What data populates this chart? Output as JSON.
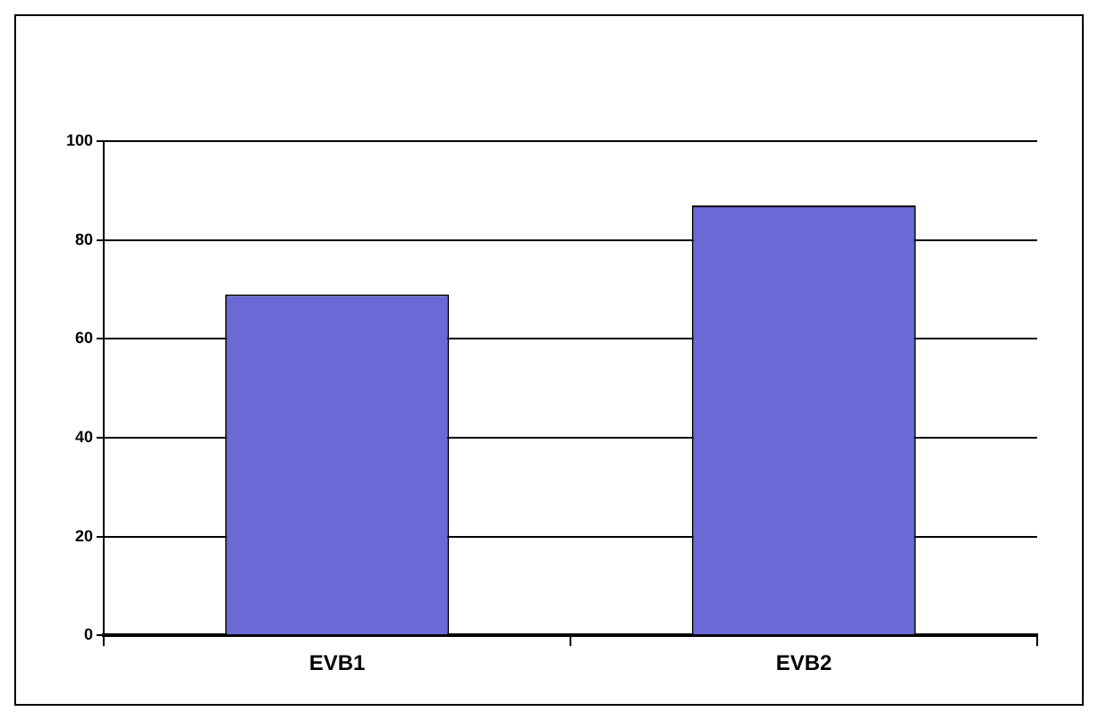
{
  "chart_data": {
    "type": "bar",
    "categories": [
      "EVB1",
      "EVB2"
    ],
    "values": [
      69,
      87
    ],
    "color": "#6a6ad6",
    "ylim": [
      0,
      100
    ],
    "yticks": [
      0,
      20,
      40,
      60,
      80,
      100
    ],
    "grid": "y"
  }
}
